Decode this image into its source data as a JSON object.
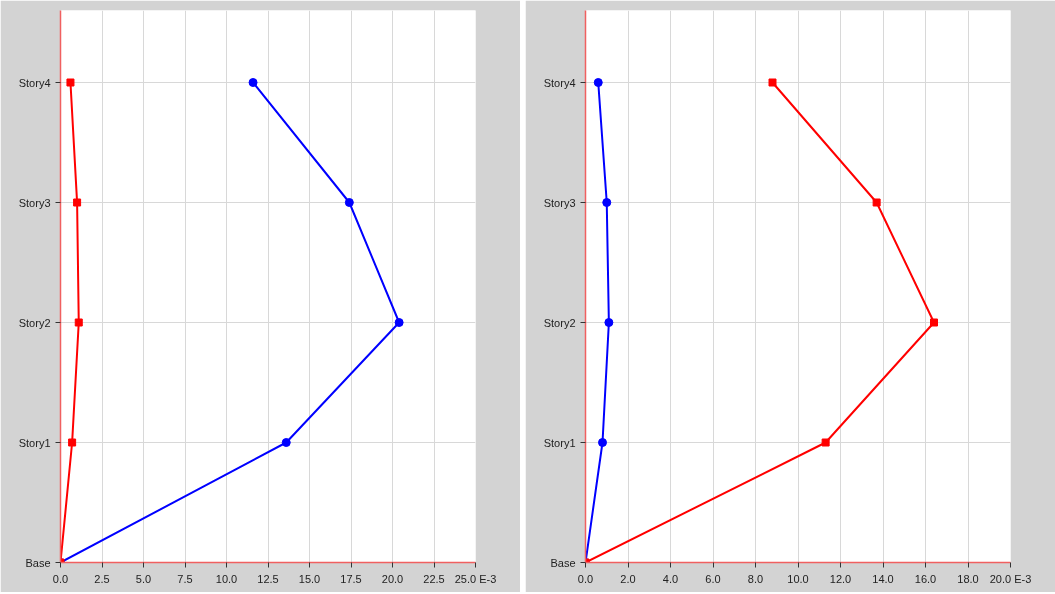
{
  "chart_data": [
    {
      "type": "line",
      "orientation": "horizontal",
      "xlim": [
        0,
        25
      ],
      "xticks": [
        {
          "value": 0,
          "label": "0.0"
        },
        {
          "value": 2.5,
          "label": "2.5"
        },
        {
          "value": 5,
          "label": "5.0"
        },
        {
          "value": 7.5,
          "label": "7.5"
        },
        {
          "value": 10,
          "label": "10.0"
        },
        {
          "value": 12.5,
          "label": "12.5"
        },
        {
          "value": 15,
          "label": "15.0"
        },
        {
          "value": 17.5,
          "label": "17.5"
        },
        {
          "value": 20,
          "label": "20.0"
        },
        {
          "value": 22.5,
          "label": "22.5"
        },
        {
          "value": 25,
          "label": "25.0 E-3"
        }
      ],
      "categories": [
        "Story4",
        "Story3",
        "Story2",
        "Story1",
        "Base"
      ],
      "grid": true,
      "series": [
        {
          "color": "#0000ff",
          "marker": "circle",
          "values": [
            11.6,
            17.4,
            20.4,
            13.6,
            0
          ]
        },
        {
          "color": "#ff0000",
          "marker": "square",
          "values": [
            0.6,
            1.0,
            1.1,
            0.7,
            0
          ]
        }
      ]
    },
    {
      "type": "line",
      "orientation": "horizontal",
      "xlim": [
        0,
        20
      ],
      "xticks": [
        {
          "value": 0,
          "label": "0.0"
        },
        {
          "value": 2,
          "label": "2.0"
        },
        {
          "value": 4,
          "label": "4.0"
        },
        {
          "value": 6,
          "label": "6.0"
        },
        {
          "value": 8,
          "label": "8.0"
        },
        {
          "value": 10,
          "label": "10.0"
        },
        {
          "value": 12,
          "label": "12.0"
        },
        {
          "value": 14,
          "label": "14.0"
        },
        {
          "value": 16,
          "label": "16.0"
        },
        {
          "value": 18,
          "label": "18.0"
        },
        {
          "value": 20,
          "label": "20.0 E-3"
        }
      ],
      "categories": [
        "Story4",
        "Story3",
        "Story2",
        "Story1",
        "Base"
      ],
      "grid": true,
      "series": [
        {
          "color": "#0000ff",
          "marker": "circle",
          "values": [
            0.6,
            1.0,
            1.1,
            0.8,
            0
          ]
        },
        {
          "color": "#ff0000",
          "marker": "square",
          "values": [
            8.8,
            13.7,
            16.4,
            11.3,
            0
          ]
        }
      ]
    }
  ]
}
